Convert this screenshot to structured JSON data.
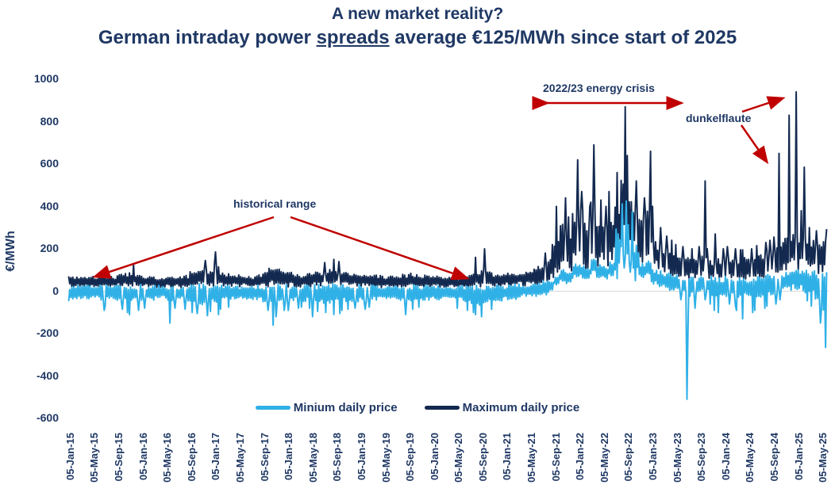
{
  "title": {
    "line1": "A new market reality?",
    "line2_pre": "German intraday power ",
    "line2_underlined": "spreads",
    "line2_post": " average €125/MWh since start of 2025"
  },
  "colors": {
    "text_navy": "#1F3864",
    "series_max": "#13294F",
    "series_min": "#2FB0E6",
    "annotation_red": "#C00000",
    "zero_gridline": "#D9D9D9"
  },
  "legend": {
    "items": [
      {
        "label": "Minium daily price",
        "color": "#2FB0E6"
      },
      {
        "label": "Maximum daily price",
        "color": "#13294F"
      }
    ]
  },
  "annotations": {
    "historical_range": "historical range",
    "energy_crisis": "2022/23 energy crisis",
    "dunkelflaute": "dunkelflaute"
  },
  "chart_data": {
    "type": "line",
    "title": "A new market reality? German intraday power spreads average €125/MWh since start of 2025",
    "xlabel": "",
    "ylabel": "€/MWh",
    "ylim": [
      -600,
      1000
    ],
    "grid": "zero-line-only",
    "legend_position": "bottom-center",
    "y_ticks": [
      "1000",
      "800",
      "600",
      "400",
      "200",
      "0",
      "-200",
      "-400",
      "-600"
    ],
    "x_tick_labels": [
      "05-Jan-15",
      "05-May-15",
      "05-Sep-15",
      "05-Jan-16",
      "05-May-16",
      "05-Sep-16",
      "05-Jan-17",
      "05-May-17",
      "05-Sep-17",
      "05-Jan-18",
      "05-May-18",
      "05-Sep-18",
      "05-Jan-19",
      "05-May-19",
      "05-Sep-19",
      "05-Jan-20",
      "05-May-20",
      "05-Sep-20",
      "05-Jan-21",
      "05-May-21",
      "05-Sep-21",
      "05-Jan-22",
      "05-May-22",
      "05-Sep-22",
      "05-Jan-23",
      "05-May-23",
      "05-Sep-23",
      "05-Jan-24",
      "05-May-24",
      "05-Sep-24",
      "05-Jan-25",
      "05-May-25"
    ],
    "x_range_months": [
      "Jan-2015",
      "May-2025"
    ],
    "months_count": 125,
    "series": [
      {
        "name": "Maximum daily price",
        "color": "#13294F",
        "monthly_typical_high": [
          75,
          70,
          72,
          68,
          70,
          75,
          72,
          70,
          80,
          85,
          90,
          85,
          75,
          70,
          68,
          65,
          70,
          72,
          70,
          75,
          95,
          100,
          110,
          95,
          130,
          95,
          85,
          80,
          78,
          75,
          72,
          78,
          90,
          120,
          115,
          95,
          90,
          85,
          80,
          85,
          90,
          95,
          100,
          110,
          105,
          95,
          90,
          85,
          85,
          80,
          78,
          75,
          72,
          75,
          78,
          80,
          85,
          80,
          78,
          75,
          72,
          70,
          68,
          65,
          70,
          75,
          80,
          95,
          110,
          90,
          85,
          80,
          95,
          90,
          95,
          100,
          110,
          120,
          140,
          170,
          260,
          320,
          280,
          380,
          380,
          320,
          420,
          350,
          330,
          380,
          450,
          560,
          520,
          420,
          360,
          420,
          260,
          230,
          200,
          190,
          180,
          170,
          160,
          165,
          170,
          160,
          150,
          155,
          170,
          165,
          160,
          160,
          165,
          175,
          185,
          195,
          205,
          230,
          260,
          280,
          270,
          255,
          240,
          230,
          235
        ],
        "monthly_peak": [
          100,
          90,
          95,
          85,
          88,
          95,
          90,
          88,
          105,
          115,
          125,
          110,
          95,
          88,
          85,
          80,
          90,
          95,
          88,
          95,
          120,
          130,
          145,
          120,
          185,
          120,
          105,
          100,
          95,
          90,
          88,
          95,
          115,
          150,
          140,
          115,
          110,
          105,
          100,
          110,
          115,
          125,
          135,
          150,
          140,
          120,
          115,
          105,
          105,
          100,
          95,
          90,
          88,
          92,
          95,
          100,
          110,
          100,
          95,
          90,
          88,
          85,
          82,
          80,
          85,
          92,
          100,
          160,
          200,
          115,
          105,
          100,
          120,
          110,
          115,
          125,
          140,
          150,
          180,
          220,
          400,
          440,
          350,
          620,
          470,
          400,
          690,
          430,
          400,
          470,
          560,
          870,
          640,
          520,
          440,
          660,
          400,
          300,
          260,
          240,
          220,
          210,
          200,
          210,
          520,
          200,
          270,
          200,
          210,
          200,
          195,
          195,
          200,
          215,
          230,
          240,
          255,
          650,
          830,
          940,
          380,
          585,
          300,
          285,
          290
        ],
        "monthly_band_low": [
          18,
          18,
          18,
          18,
          18,
          18,
          18,
          18,
          20,
          20,
          22,
          20,
          18,
          16,
          16,
          15,
          16,
          17,
          16,
          18,
          22,
          24,
          26,
          22,
          28,
          22,
          20,
          18,
          18,
          17,
          16,
          18,
          20,
          26,
          25,
          22,
          20,
          19,
          18,
          19,
          20,
          21,
          22,
          24,
          23,
          21,
          20,
          19,
          19,
          18,
          17,
          16,
          16,
          17,
          17,
          18,
          19,
          18,
          17,
          16,
          16,
          15,
          15,
          14,
          15,
          16,
          17,
          20,
          24,
          20,
          18,
          17,
          22,
          21,
          22,
          24,
          27,
          30,
          36,
          45,
          70,
          95,
          85,
          120,
          120,
          100,
          140,
          115,
          105,
          125,
          150,
          200,
          185,
          145,
          120,
          140,
          95,
          85,
          75,
          70,
          65,
          60,
          55,
          58,
          62,
          58,
          52,
          54,
          58,
          56,
          54,
          54,
          56,
          60,
          64,
          68,
          72,
          80,
          95,
          105,
          100,
          92,
          85,
          80,
          82
        ]
      },
      {
        "name": "Minium daily price",
        "color": "#2FB0E6",
        "monthly_typical_low": [
          -45,
          -40,
          -42,
          -38,
          -40,
          -45,
          -42,
          -40,
          -50,
          -55,
          -60,
          -55,
          -50,
          -45,
          -42,
          -40,
          -45,
          -48,
          -45,
          -50,
          -60,
          -62,
          -65,
          -58,
          -60,
          -50,
          -48,
          -45,
          -42,
          -40,
          -40,
          -45,
          -55,
          -70,
          -65,
          -55,
          -55,
          -50,
          -48,
          -50,
          -55,
          -58,
          -60,
          -65,
          -62,
          -55,
          -52,
          -50,
          -52,
          -48,
          -45,
          -42,
          -40,
          -42,
          -45,
          -48,
          -52,
          -48,
          -45,
          -42,
          -45,
          -42,
          -40,
          -45,
          -50,
          -55,
          -60,
          -65,
          -70,
          -55,
          -50,
          -48,
          -40,
          -38,
          -35,
          -30,
          -28,
          -25,
          -18,
          -8,
          20,
          40,
          30,
          60,
          60,
          50,
          80,
          60,
          55,
          70,
          90,
          150,
          130,
          80,
          60,
          70,
          30,
          20,
          10,
          0,
          -10,
          -20,
          -25,
          -20,
          -5,
          -15,
          -25,
          -30,
          -25,
          -28,
          -32,
          -38,
          -32,
          -30,
          -28,
          -25,
          -22,
          -12,
          -2,
          5,
          0,
          -10,
          -20,
          -60,
          -110
        ],
        "monthly_extreme_low": [
          -70,
          -60,
          -65,
          -55,
          -60,
          -90,
          -70,
          -65,
          -85,
          -100,
          -110,
          -90,
          -80,
          -70,
          -65,
          -60,
          -150,
          -80,
          -70,
          -85,
          -100,
          -105,
          -115,
          -95,
          -110,
          -85,
          -75,
          -70,
          -65,
          -60,
          -60,
          -70,
          -90,
          -160,
          -120,
          -90,
          -90,
          -80,
          -75,
          -80,
          -120,
          -95,
          -100,
          -110,
          -105,
          -90,
          -85,
          -80,
          -85,
          -75,
          -70,
          -65,
          -60,
          -65,
          -70,
          -110,
          -85,
          -75,
          -70,
          -65,
          -70,
          -65,
          -60,
          -70,
          -80,
          -90,
          -100,
          -110,
          -120,
          -85,
          -75,
          -70,
          -65,
          -60,
          -55,
          -45,
          -40,
          -38,
          -28,
          -14,
          5,
          25,
          15,
          40,
          40,
          30,
          55,
          40,
          35,
          45,
          60,
          110,
          90,
          50,
          35,
          45,
          10,
          0,
          -15,
          -25,
          -40,
          -510,
          -200,
          -80,
          -40,
          -60,
          -90,
          -100,
          -60,
          -70,
          -90,
          -130,
          -100,
          -90,
          -80,
          -70,
          -60,
          -40,
          -25,
          -15,
          -25,
          -45,
          -70,
          -150,
          -265
        ],
        "monthly_high_overrides": {
          "90": 300,
          "91": 455,
          "92": 380,
          "93": 220
        }
      }
    ]
  }
}
